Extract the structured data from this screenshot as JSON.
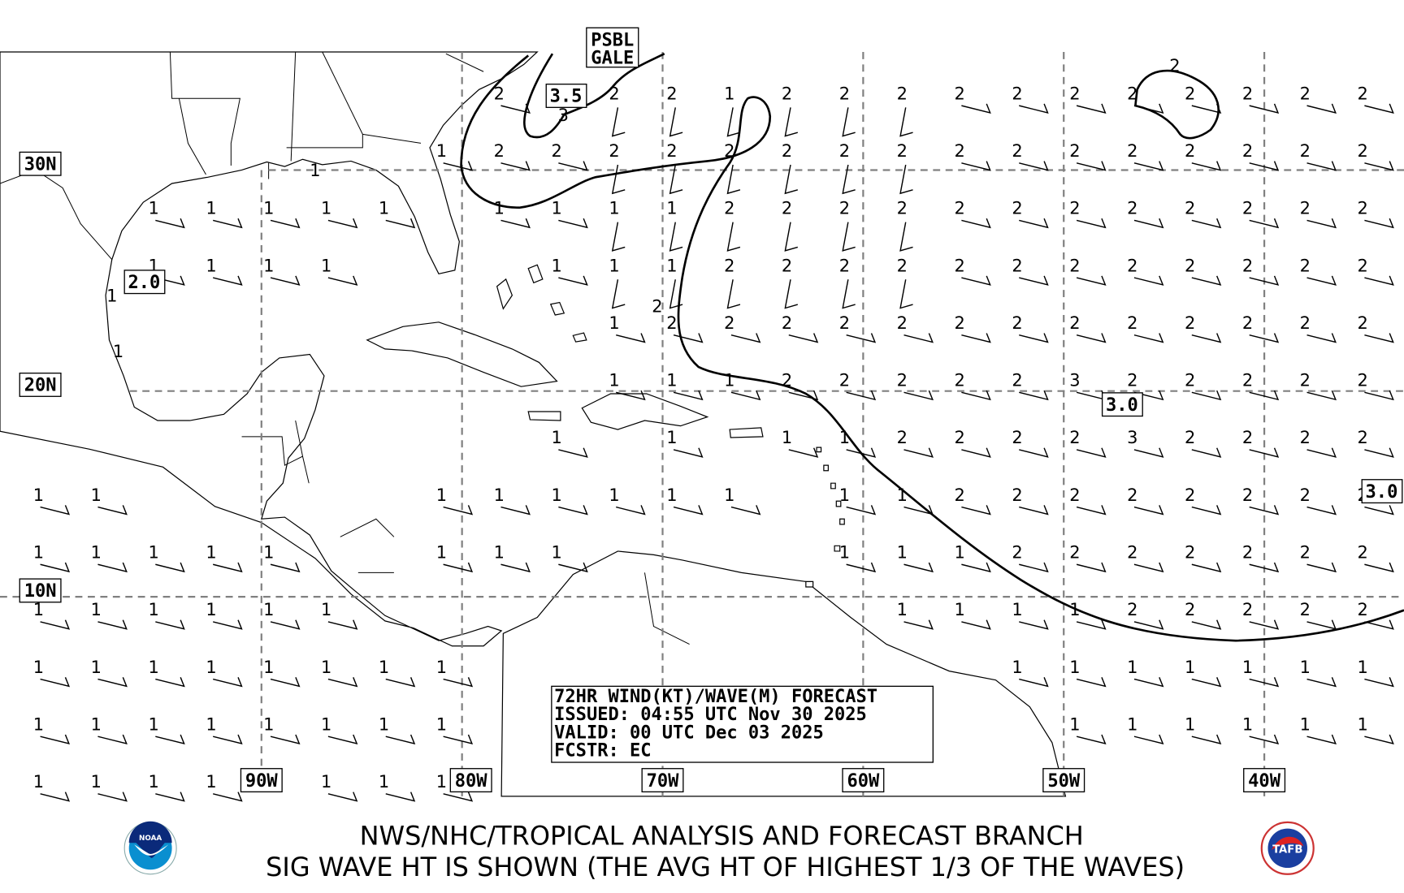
{
  "map": {
    "lat_labels": [
      "30N",
      "20N",
      "10N"
    ],
    "lon_labels": [
      "90W",
      "80W",
      "70W",
      "60W",
      "50W",
      "40W"
    ],
    "colors": {
      "grid": "#808080",
      "lines": "#000000",
      "noaa_blue": "#0a8fd0",
      "noaa_navy": "#0b2a7a"
    },
    "wave_height_labels": [
      {
        "text": "3.5",
        "near": "off Carolinas"
      },
      {
        "text": "2.0",
        "near": "western Gulf of Mexico"
      },
      {
        "text": "3.0",
        "near": "east of Lesser Antilles"
      },
      {
        "text": "3.0",
        "near": "eastern edge"
      }
    ],
    "contour_labels": [
      "3",
      "2",
      "2"
    ],
    "warning": {
      "line1": "PSBL",
      "line2": "GALE"
    },
    "wave_grid": [
      [
        null,
        null,
        null,
        null,
        null,
        null,
        null,
        null,
        2,
        null,
        2,
        2,
        1,
        2,
        2,
        2,
        2,
        2,
        2,
        2,
        2,
        2,
        2,
        2
      ],
      [
        null,
        null,
        null,
        null,
        null,
        null,
        null,
        1,
        2,
        2,
        2,
        2,
        2,
        2,
        2,
        2,
        2,
        2,
        2,
        2,
        2,
        2,
        2,
        2
      ],
      [
        null,
        null,
        1,
        1,
        1,
        1,
        1,
        null,
        1,
        1,
        1,
        1,
        2,
        2,
        2,
        2,
        2,
        2,
        2,
        2,
        2,
        2,
        2,
        2
      ],
      [
        null,
        null,
        1,
        1,
        1,
        1,
        null,
        null,
        null,
        1,
        1,
        1,
        2,
        2,
        2,
        2,
        2,
        2,
        2,
        2,
        2,
        2,
        2,
        2
      ],
      [
        null,
        null,
        null,
        null,
        null,
        null,
        null,
        null,
        null,
        null,
        1,
        2,
        2,
        2,
        2,
        2,
        2,
        2,
        2,
        2,
        2,
        2,
        2,
        2
      ],
      [
        null,
        null,
        null,
        null,
        null,
        null,
        null,
        null,
        null,
        null,
        1,
        1,
        1,
        2,
        2,
        2,
        2,
        2,
        3,
        2,
        2,
        2,
        2,
        2
      ],
      [
        null,
        null,
        null,
        null,
        null,
        null,
        null,
        null,
        null,
        1,
        null,
        1,
        null,
        1,
        1,
        2,
        2,
        2,
        2,
        3,
        2,
        2,
        2,
        2
      ],
      [
        1,
        1,
        null,
        null,
        null,
        null,
        null,
        1,
        1,
        1,
        1,
        1,
        1,
        null,
        1,
        1,
        2,
        2,
        2,
        2,
        2,
        2,
        2,
        2
      ],
      [
        1,
        1,
        1,
        1,
        1,
        null,
        null,
        1,
        1,
        1,
        null,
        null,
        null,
        null,
        1,
        1,
        1,
        2,
        2,
        2,
        2,
        2,
        2,
        2
      ],
      [
        1,
        1,
        1,
        1,
        1,
        1,
        null,
        null,
        null,
        null,
        null,
        null,
        null,
        null,
        null,
        1,
        1,
        1,
        1,
        2,
        2,
        2,
        2,
        2
      ],
      [
        1,
        1,
        1,
        1,
        1,
        1,
        1,
        1,
        null,
        null,
        null,
        null,
        null,
        null,
        null,
        null,
        null,
        1,
        1,
        1,
        1,
        1,
        1,
        1
      ],
      [
        1,
        1,
        1,
        1,
        1,
        1,
        1,
        1,
        null,
        null,
        null,
        null,
        null,
        null,
        null,
        null,
        null,
        null,
        1,
        1,
        1,
        1,
        1,
        1
      ],
      [
        1,
        1,
        1,
        1,
        null,
        1,
        1,
        1,
        null,
        null,
        null,
        null,
        null,
        null,
        null,
        null,
        null,
        null,
        null,
        null,
        null,
        null,
        null,
        null
      ]
    ],
    "extra_wave_values": [
      1,
      1,
      1
    ]
  },
  "info_box": {
    "line1": "72HR WIND(KT)/WAVE(M) FORECAST",
    "line2": "ISSUED: 04:55 UTC Nov 30 2025",
    "line3": "VALID: 00 UTC Dec 03 2025",
    "line4": "FCSTR: EC"
  },
  "footer": {
    "line1": "NWS/NHC/TROPICAL ANALYSIS AND FORECAST BRANCH",
    "line2": "SIG WAVE HT IS SHOWN (THE AVG HT OF HIGHEST 1/3 OF THE WAVES)",
    "logo_left": "NOAA",
    "logo_right": "TAFB"
  }
}
